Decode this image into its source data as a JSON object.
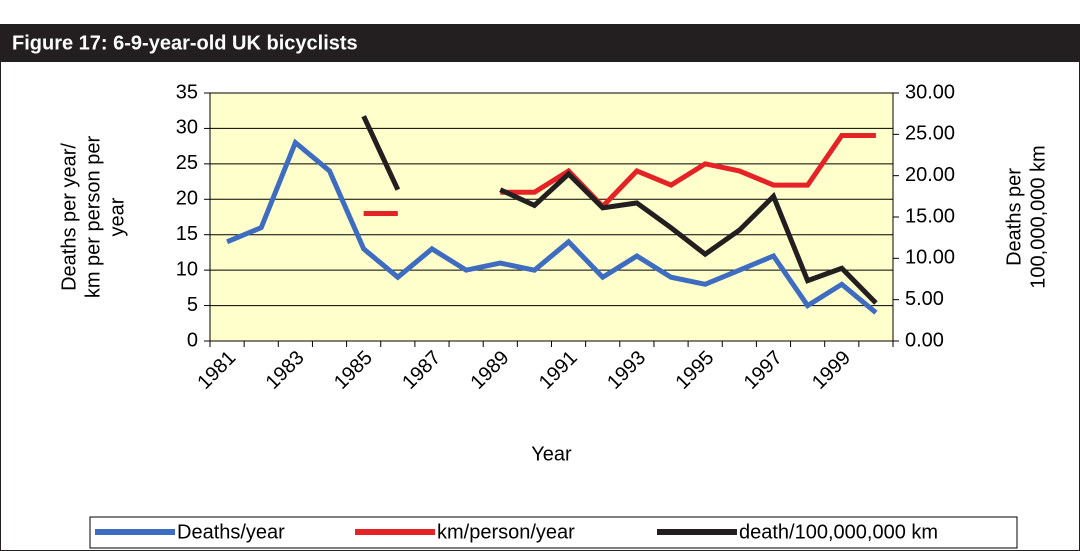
{
  "chart_data": {
    "type": "line",
    "title": "Figure 17: 6-9-year-old UK bicyclists",
    "categories": [
      "1981",
      null,
      "1983",
      null,
      "1985",
      null,
      "1987",
      null,
      "1989",
      null,
      "1991",
      null,
      "1993",
      null,
      "1995",
      null,
      "1997",
      null,
      "1999",
      null
    ],
    "xlabel": "Year",
    "ylabel_lines": [
      "Deaths per year/",
      "km per person per",
      "year"
    ],
    "y2label_lines": [
      "Deaths per",
      "100,000,000 km"
    ],
    "ylim": [
      0,
      35
    ],
    "yticks": [
      0,
      5,
      10,
      15,
      20,
      25,
      30,
      35
    ],
    "y2lim": [
      0,
      30
    ],
    "y2ticks": [
      {
        "value": 0,
        "label": "0.00"
      },
      {
        "value": 5,
        "label": "5.00"
      },
      {
        "value": 10,
        "label": "10.00"
      },
      {
        "value": 15,
        "label": "15.00"
      },
      {
        "value": 20,
        "label": "20.00"
      },
      {
        "value": 25,
        "label": "25.00"
      },
      {
        "value": 30,
        "label": "30.00"
      }
    ],
    "grid": true,
    "legend": "bottom",
    "series": [
      {
        "name": "Deaths/year",
        "color": "#3d6cc0",
        "values": [
          14,
          16,
          28,
          24,
          13,
          9,
          13,
          10,
          11,
          10,
          14,
          9,
          12,
          9,
          8,
          10,
          12,
          5,
          8,
          4
        ]
      },
      {
        "name": "km/person/year",
        "color": "#e52225",
        "values": [
          null,
          null,
          null,
          null,
          18,
          18,
          null,
          null,
          21,
          21,
          24,
          19,
          24,
          22,
          25,
          24,
          22,
          22,
          29,
          29
        ]
      },
      {
        "name": "death/100,000,000 km",
        "color": "#231f20",
        "axis": "y2",
        "values": [
          null,
          null,
          null,
          null,
          27.2,
          18.3,
          null,
          null,
          18.3,
          16.4,
          20.2,
          16.1,
          16.7,
          13.7,
          10.5,
          13.4,
          17.5,
          7.3,
          8.8,
          4.6
        ]
      }
    ]
  }
}
